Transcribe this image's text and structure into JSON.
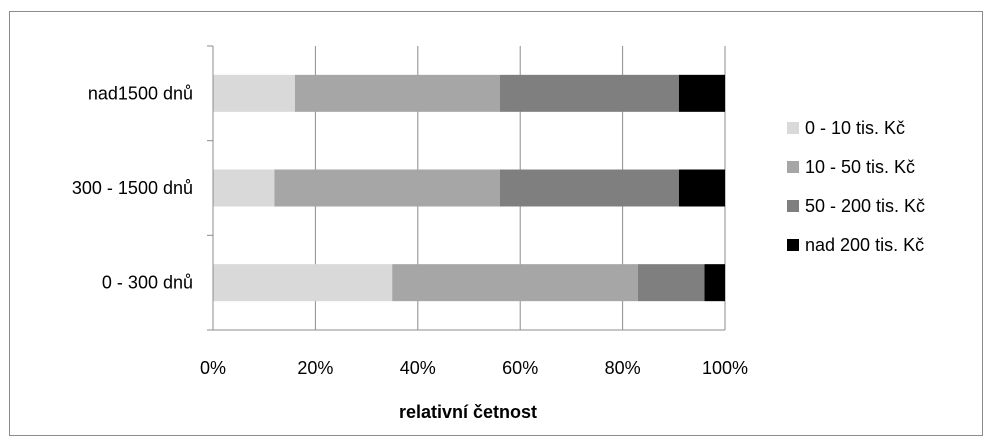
{
  "chart_data": {
    "type": "bar",
    "orientation": "horizontal",
    "stacked": "percent",
    "categories": [
      "0 - 300 dnů",
      "300 - 1500 dnů",
      "nad1500  dnů"
    ],
    "series": [
      {
        "name": "0 - 10 tis. Kč",
        "color": "#d9d9d9",
        "values": [
          35,
          12,
          16
        ]
      },
      {
        "name": "10 - 50 tis. Kč",
        "color": "#a6a6a6",
        "values": [
          48,
          44,
          40
        ]
      },
      {
        "name": "50 - 200 tis. Kč",
        "color": "#7f7f7f",
        "values": [
          13,
          35,
          35
        ]
      },
      {
        "name": "nad 200  tis. Kč",
        "color": "#000000",
        "values": [
          4,
          9,
          9
        ]
      }
    ],
    "xticks": [
      "0%",
      "20%",
      "40%",
      "60%",
      "80%",
      "100%"
    ],
    "xlabel": "relativní četnost",
    "ylabel": "",
    "xlim": [
      0,
      100
    ],
    "grid": "vertical",
    "legend_position": "right"
  }
}
